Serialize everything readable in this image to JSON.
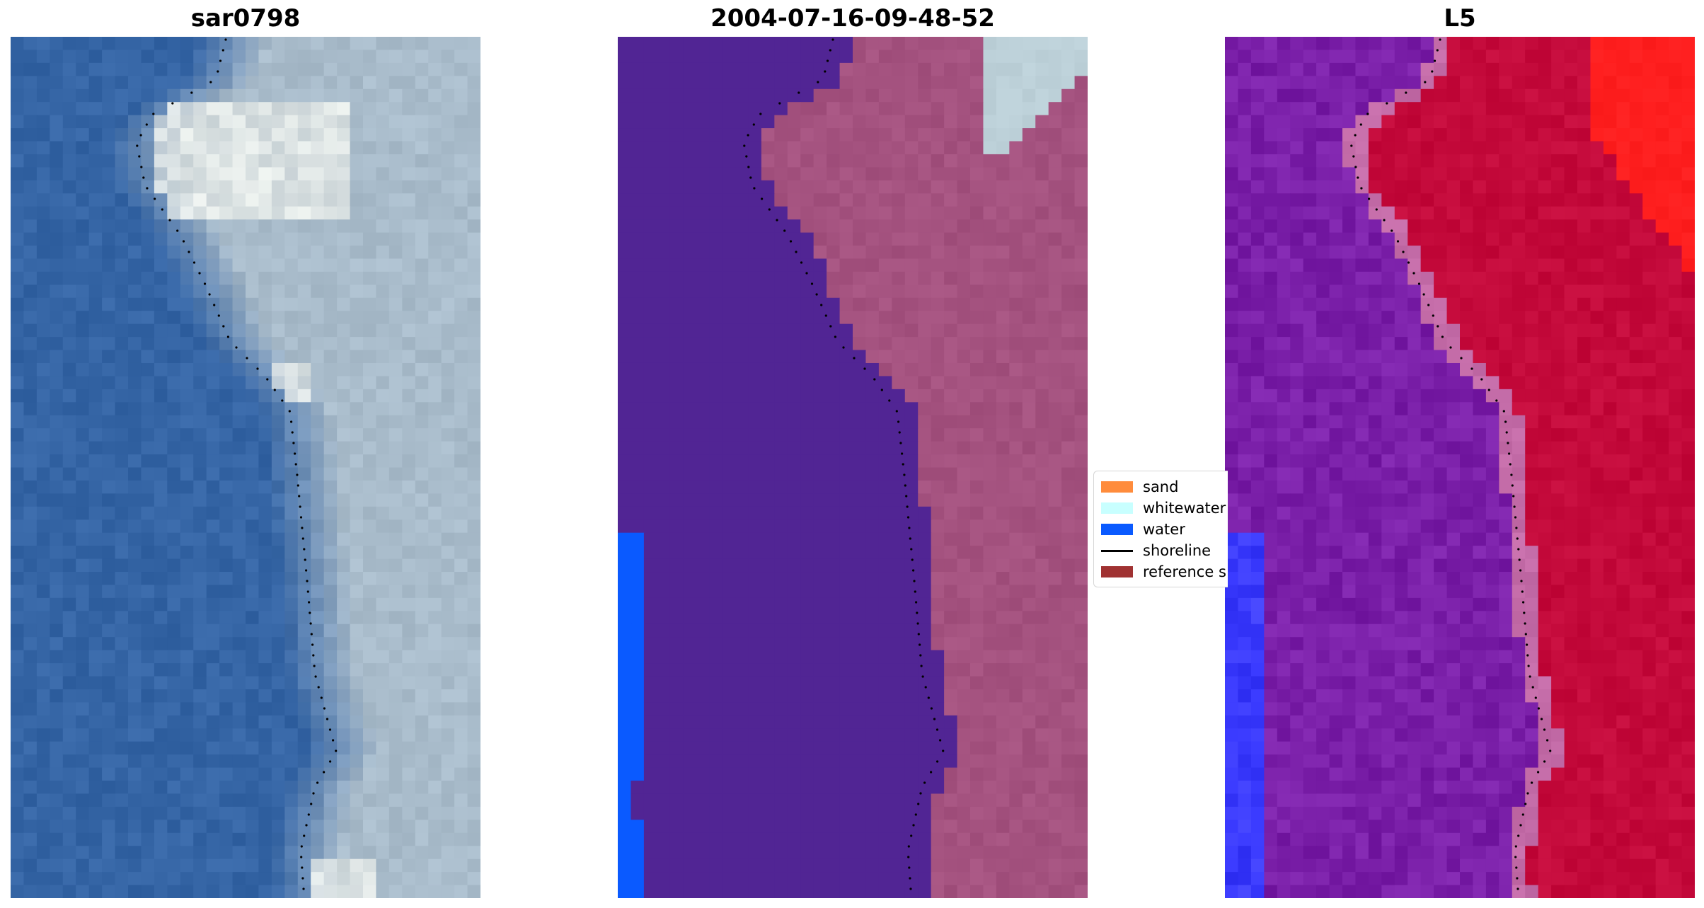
{
  "panels": [
    {
      "title": "sar0798",
      "style": "rgb"
    },
    {
      "title": "2004-07-16-09-48-52",
      "style": "classified"
    },
    {
      "title": "L5",
      "style": "index"
    }
  ],
  "legend": {
    "items": [
      {
        "label": "sand",
        "kind": "patch",
        "color": "#ff8c3c"
      },
      {
        "label": "whitewater",
        "kind": "patch",
        "color": "#c8ffff"
      },
      {
        "label": "water",
        "kind": "patch",
        "color": "#0a5aff"
      },
      {
        "label": "shoreline",
        "kind": "line",
        "color": "#000000"
      },
      {
        "label": "reference s",
        "kind": "patch",
        "color": "#a03232"
      }
    ]
  },
  "colors": {
    "rgb_water": "#3565a5",
    "rgb_land": "#a9bccb",
    "rgb_bright": "#f2f4ee",
    "class_water": "#512594",
    "class_land": "#a4527f",
    "class_whitewater": "#bcd0d8",
    "class_blue": "#0a5aff",
    "index_water": "#7a1fa8",
    "index_land": "#c40a3b",
    "index_transition": "#c46ca8",
    "index_red": "#ff1f1f",
    "index_blue": "#3b3bff"
  }
}
